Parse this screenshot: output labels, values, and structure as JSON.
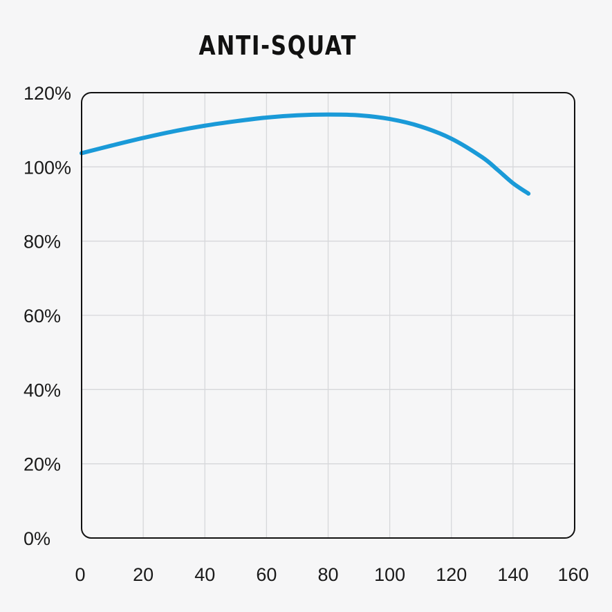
{
  "chart_data": {
    "type": "line",
    "title": "ANTI-SQUAT",
    "xlabel": "",
    "ylabel": "",
    "xlim": [
      0,
      160
    ],
    "ylim": [
      0,
      120
    ],
    "x_ticks": [
      0,
      20,
      40,
      60,
      80,
      100,
      120,
      140,
      160
    ],
    "y_ticks": [
      0,
      20,
      40,
      60,
      80,
      100,
      120
    ],
    "x_tick_labels": [
      "0",
      "20",
      "40",
      "60",
      "80",
      "100",
      "120",
      "140",
      "160"
    ],
    "y_tick_labels": [
      "0%",
      "20%",
      "40%",
      "60%",
      "80%",
      "100%",
      "120%"
    ],
    "grid": true,
    "legend": "none",
    "series": [
      {
        "color": "#1a9ad8",
        "x": [
          0,
          10,
          20,
          30,
          40,
          50,
          60,
          70,
          80,
          90,
          100,
          110,
          120,
          130,
          135,
          140,
          145
        ],
        "y": [
          103.7,
          105.8,
          107.8,
          109.6,
          111.1,
          112.3,
          113.3,
          113.9,
          114.1,
          113.9,
          112.9,
          110.9,
          107.6,
          102.6,
          99.2,
          95.6,
          92.8
        ]
      }
    ]
  }
}
